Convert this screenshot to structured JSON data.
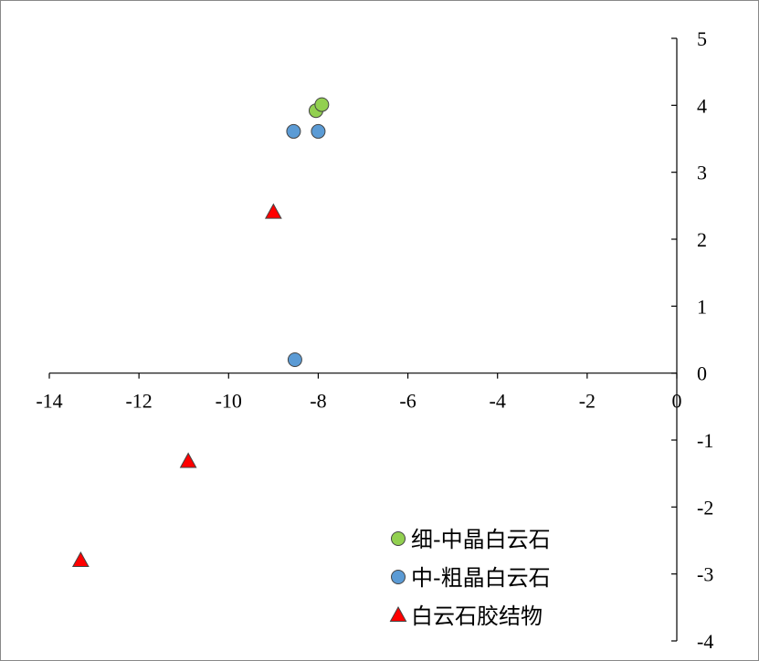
{
  "chart_data": {
    "type": "scatter",
    "xlim": [
      -14,
      0
    ],
    "ylim": [
      -4,
      5
    ],
    "x_ticks": [
      -14,
      -12,
      -10,
      -8,
      -6,
      -4,
      -2,
      0
    ],
    "y_ticks": [
      5,
      4,
      3,
      2,
      1,
      0,
      -1,
      -2,
      -3,
      -4
    ],
    "grid": false,
    "legend_position": "bottom-right",
    "series": [
      {
        "name": "细-中晶白云石",
        "marker": "circle",
        "color": "#92D050",
        "points": [
          {
            "x": -8.05,
            "y": 3.92
          },
          {
            "x": -7.92,
            "y": 4.01
          }
        ]
      },
      {
        "name": "中-粗晶白云石",
        "marker": "circle",
        "color": "#5B9BD5",
        "points": [
          {
            "x": -8.55,
            "y": 3.61
          },
          {
            "x": -8.0,
            "y": 3.61
          },
          {
            "x": -8.52,
            "y": 0.2
          }
        ]
      },
      {
        "name": "白云石胶结物",
        "marker": "triangle",
        "color": "#FF0000",
        "points": [
          {
            "x": -9.0,
            "y": 2.4
          },
          {
            "x": -10.9,
            "y": -1.32
          },
          {
            "x": -13.3,
            "y": -2.8
          }
        ]
      }
    ]
  }
}
